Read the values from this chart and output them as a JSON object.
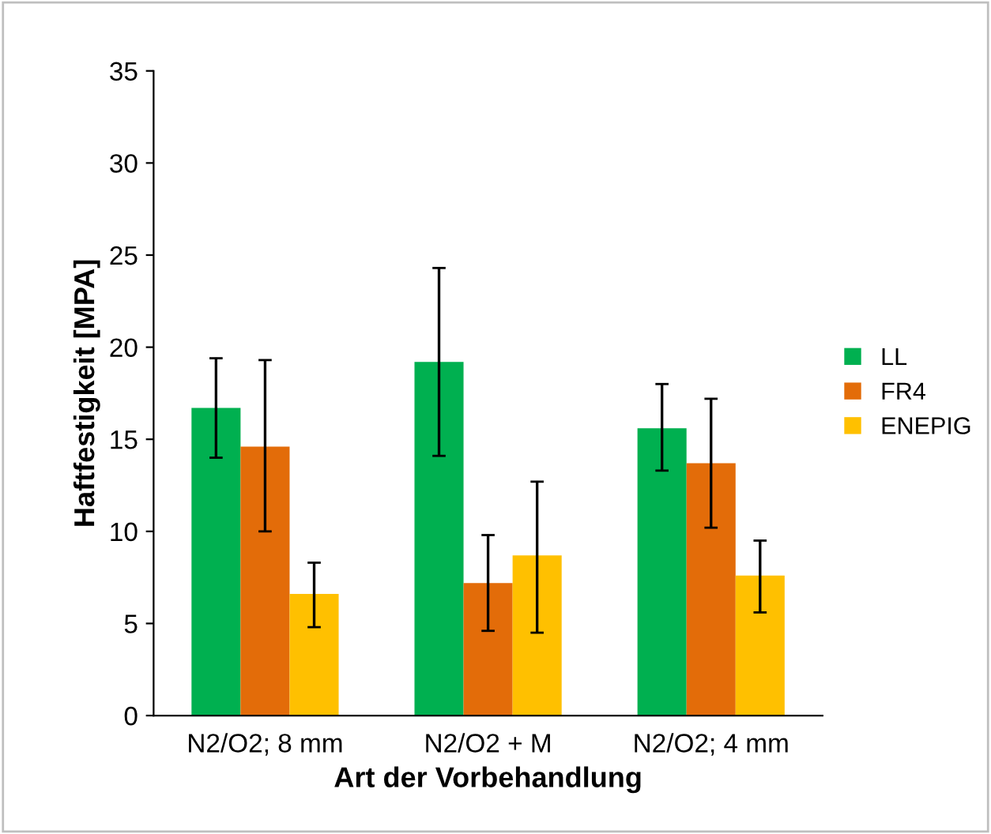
{
  "chart_data": {
    "type": "bar",
    "xlabel": "Art der Vorbehandlung",
    "ylabel": "Haftfestigkeit [MPA]",
    "categories": [
      "N2/O2; 8 mm",
      "N2/O2 + M",
      "N2/O2; 4 mm"
    ],
    "series": [
      {
        "name": "LL",
        "color": "#00b050",
        "values": [
          16.7,
          19.2,
          15.6
        ],
        "errors": [
          [
            14.0,
            19.4
          ],
          [
            14.1,
            24.3
          ],
          [
            13.3,
            18.0
          ]
        ]
      },
      {
        "name": "FR4",
        "color": "#e36c09",
        "values": [
          14.6,
          7.2,
          13.7
        ],
        "errors": [
          [
            10.0,
            19.3
          ],
          [
            4.6,
            9.8
          ],
          [
            10.2,
            17.2
          ]
        ]
      },
      {
        "name": "ENEPIG",
        "color": "#ffc000",
        "values": [
          6.6,
          8.7,
          7.6
        ],
        "errors": [
          [
            4.8,
            8.3
          ],
          [
            4.5,
            12.7
          ],
          [
            5.6,
            9.5
          ]
        ]
      }
    ],
    "ylim": [
      0,
      35
    ],
    "yticks": [
      0,
      5,
      10,
      15,
      20,
      25,
      30,
      35
    ],
    "grid": false,
    "legend": "right"
  }
}
